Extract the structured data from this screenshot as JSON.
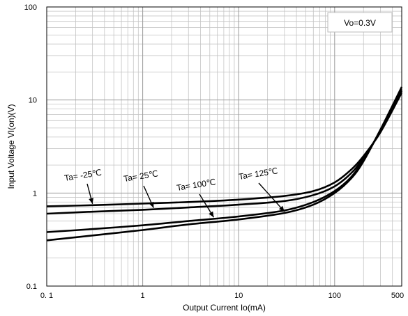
{
  "chart_data": {
    "type": "line",
    "x_scale": "log",
    "y_scale": "log",
    "xlim": [
      0.1,
      500
    ],
    "ylim": [
      0.1,
      100
    ],
    "xlabel": "Output Current Io(mA)",
    "ylabel": "Input Voltage VI(on)(V)",
    "x_tick_labels": [
      {
        "value": 0.1,
        "label": "0. 1"
      },
      {
        "value": 1,
        "label": "1"
      },
      {
        "value": 10,
        "label": "10"
      },
      {
        "value": 100,
        "label": "100"
      },
      {
        "value": 500,
        "label": "500"
      }
    ],
    "y_tick_labels": [
      {
        "value": 0.1,
        "label": "0.1"
      },
      {
        "value": 1,
        "label": "1"
      },
      {
        "value": 10,
        "label": "10"
      },
      {
        "value": 100,
        "label": "100"
      }
    ],
    "grid": true,
    "legend_box": "Vo=0.3V",
    "legend_position": "top-right",
    "line_color": "#000000",
    "series": [
      {
        "name": "Ta= -25℃",
        "x": [
          0.1,
          0.3,
          1,
          3,
          10,
          30,
          60,
          100,
          150,
          200,
          300,
          500
        ],
        "y": [
          0.72,
          0.74,
          0.77,
          0.8,
          0.85,
          0.93,
          1.05,
          1.3,
          1.8,
          2.5,
          4.5,
          12.0
        ]
      },
      {
        "name": "Ta= 25℃",
        "x": [
          0.1,
          0.3,
          1,
          3,
          10,
          30,
          60,
          100,
          150,
          200,
          300,
          500
        ],
        "y": [
          0.6,
          0.63,
          0.66,
          0.7,
          0.75,
          0.82,
          0.95,
          1.18,
          1.65,
          2.4,
          4.6,
          12.5
        ]
      },
      {
        "name": "Ta= 100℃",
        "x": [
          0.1,
          0.3,
          1,
          3,
          10,
          30,
          60,
          100,
          150,
          200,
          300,
          500
        ],
        "y": [
          0.38,
          0.41,
          0.45,
          0.5,
          0.56,
          0.65,
          0.8,
          1.05,
          1.5,
          2.3,
          4.7,
          13.0
        ]
      },
      {
        "name": "Ta= 125℃",
        "x": [
          0.1,
          0.3,
          1,
          3,
          10,
          30,
          60,
          100,
          150,
          200,
          300,
          500
        ],
        "y": [
          0.31,
          0.35,
          0.4,
          0.46,
          0.52,
          0.61,
          0.75,
          1.0,
          1.45,
          2.2,
          4.8,
          13.8
        ]
      }
    ],
    "annotations": [
      {
        "text": "Ta= -25℃",
        "series": 0
      },
      {
        "text": "Ta= 25℃",
        "series": 1
      },
      {
        "text": "Ta= 100℃",
        "series": 2
      },
      {
        "text": "Ta= 125℃",
        "series": 3
      }
    ]
  }
}
